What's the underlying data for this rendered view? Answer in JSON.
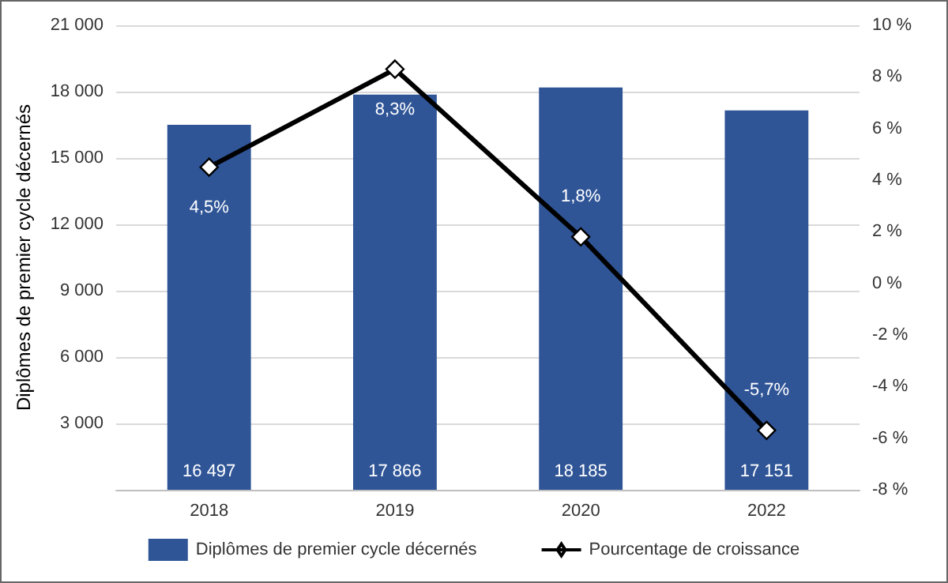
{
  "chart_data": {
    "type": "bar",
    "categories": [
      "2018",
      "2019",
      "2020",
      "2022"
    ],
    "ylabel": "Diplômes de premier cycle décernés",
    "series": [
      {
        "name": "Diplômes de premier cycle décernés",
        "color": "#2f5597",
        "values": [
          16497,
          17866,
          18185,
          17151
        ],
        "value_labels": [
          "16 497",
          "17 866",
          "18 185",
          "17 151"
        ]
      },
      {
        "name": "Pourcentage de croissance",
        "type": "line",
        "axis": "y2",
        "color": "#000000",
        "marker": "diamond",
        "values": [
          4.5,
          8.3,
          1.8,
          -5.7
        ],
        "value_labels": [
          "4,5%",
          "8,3%",
          "1,8%",
          "-5,7%"
        ]
      }
    ],
    "ylim": [
      0,
      21000
    ],
    "yticks": [
      {
        "value": 0,
        "label": null
      },
      {
        "value": 3000,
        "label": "3 000"
      },
      {
        "value": 6000,
        "label": "6 000"
      },
      {
        "value": 9000,
        "label": "9 000"
      },
      {
        "value": 12000,
        "label": "12 000"
      },
      {
        "value": 15000,
        "label": "15 000"
      },
      {
        "value": 18000,
        "label": "18 000"
      },
      {
        "value": 21000,
        "label": "21 000"
      }
    ],
    "y2lim": [
      -8,
      10
    ],
    "y2ticks": [
      {
        "value": -8,
        "label": "-8 %"
      },
      {
        "value": -6,
        "label": "-6 %"
      },
      {
        "value": -4,
        "label": "-4 %"
      },
      {
        "value": -2,
        "label": "-2 %"
      },
      {
        "value": 0,
        "label": "0 %"
      },
      {
        "value": 2,
        "label": "2 %"
      },
      {
        "value": 4,
        "label": "4 %"
      },
      {
        "value": 6,
        "label": "6 %"
      },
      {
        "value": 8,
        "label": "8 %"
      },
      {
        "value": 10,
        "label": "10 %"
      }
    ],
    "grid": "y",
    "legend": "bottom"
  }
}
